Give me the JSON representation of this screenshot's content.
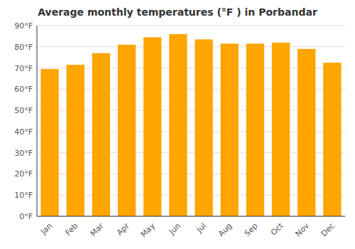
{
  "chart_data": {
    "type": "bar",
    "title": "Average monthly temperatures (°F ) in Porbandar",
    "categories": [
      "Jan",
      "Feb",
      "Mar",
      "Apr",
      "May",
      "Jun",
      "Jul",
      "Aug",
      "Sep",
      "Oct",
      "Nov",
      "Dec"
    ],
    "values": [
      69.5,
      71.5,
      77.0,
      81.0,
      84.5,
      86.0,
      83.5,
      81.5,
      81.5,
      82.0,
      79.0,
      72.5
    ],
    "color": "#FFA500",
    "ylim": [
      0,
      90
    ],
    "yticks": [
      {
        "value": 0,
        "label": "0°F"
      },
      {
        "value": 10,
        "label": "10°F"
      },
      {
        "value": 20,
        "label": "20°F"
      },
      {
        "value": 30,
        "label": "30°F"
      },
      {
        "value": 40,
        "label": "40°F"
      },
      {
        "value": 50,
        "label": "50°F"
      },
      {
        "value": 60,
        "label": "60°F"
      },
      {
        "value": 70,
        "label": "70°F"
      },
      {
        "value": 80,
        "label": "80°F"
      },
      {
        "value": 90,
        "label": "90°F"
      }
    ],
    "grid": true
  }
}
